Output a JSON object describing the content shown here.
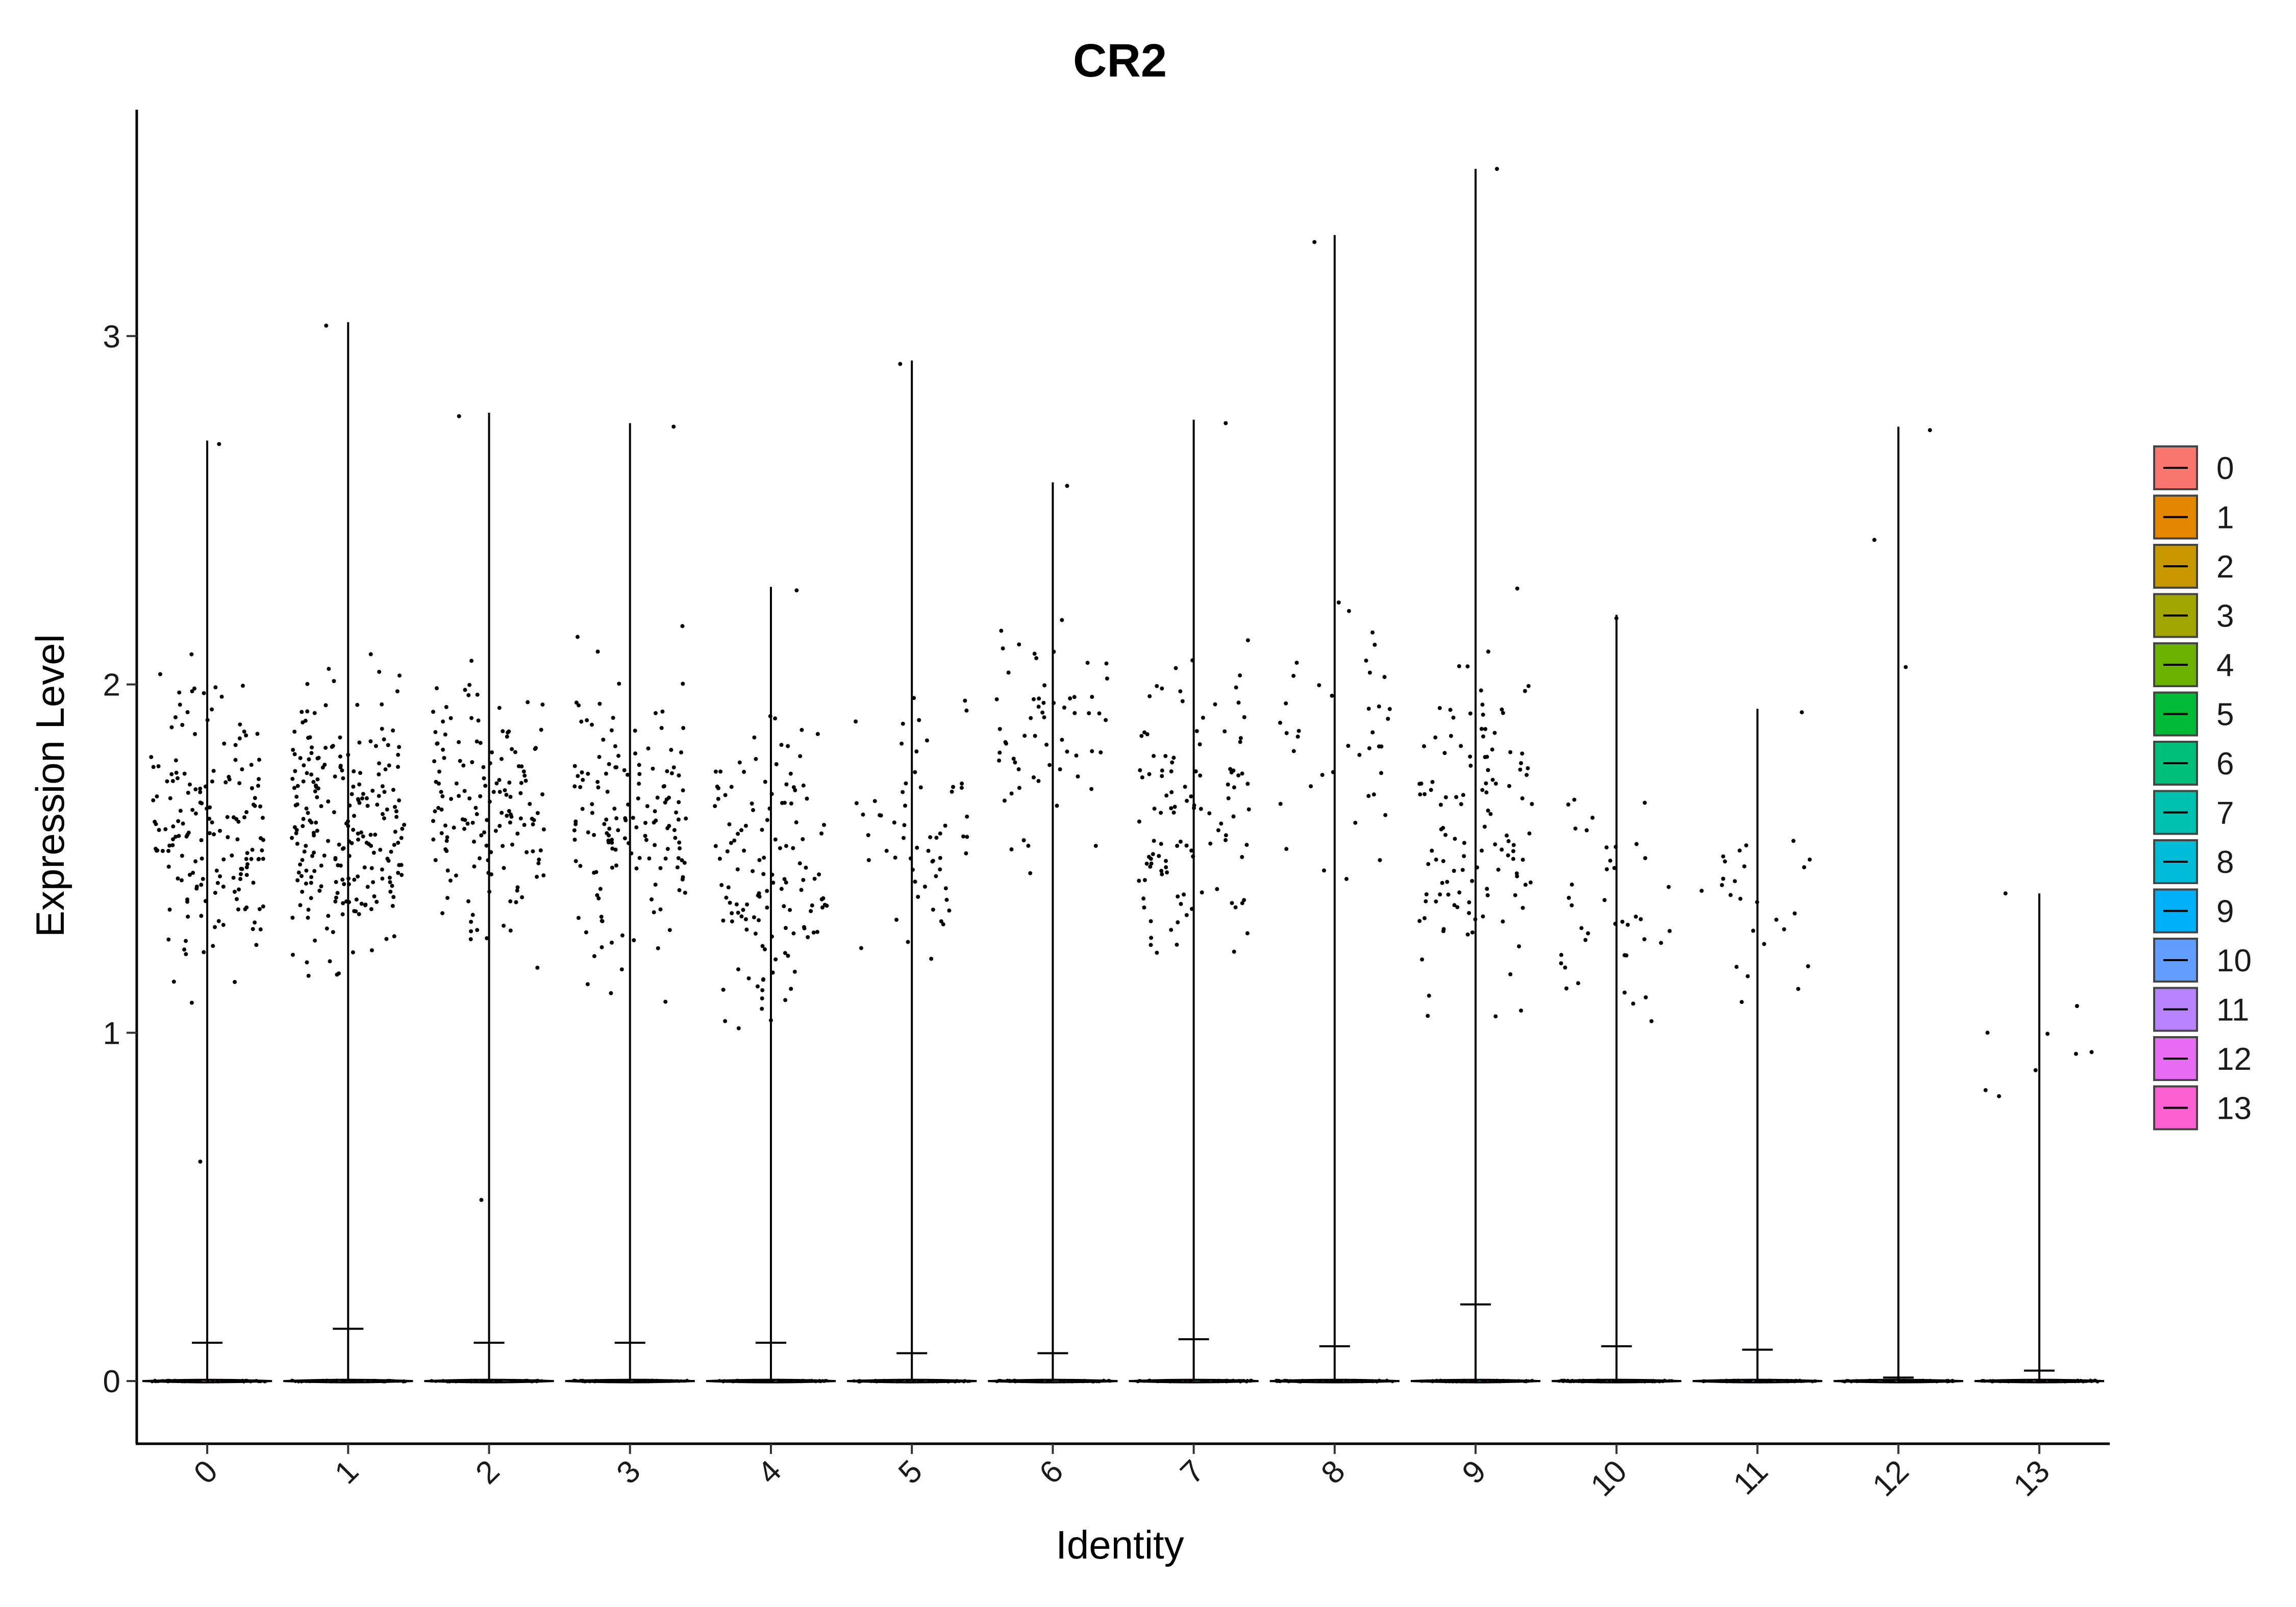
{
  "chart_data": {
    "type": "violin",
    "title": "CR2",
    "xlabel": "Identity",
    "ylabel": "Expression Level",
    "categories": [
      "0",
      "1",
      "2",
      "3",
      "4",
      "5",
      "6",
      "7",
      "8",
      "9",
      "10",
      "11",
      "12",
      "13"
    ],
    "ylim": [
      -0.18,
      3.65
    ],
    "yticks": [
      0,
      1,
      2,
      3
    ],
    "max_values": [
      2.7,
      3.04,
      2.78,
      2.75,
      2.28,
      2.93,
      2.58,
      2.76,
      3.29,
      3.48,
      2.2,
      1.93,
      2.74,
      1.4
    ],
    "medians": [
      0,
      0,
      0,
      0,
      0,
      0,
      0,
      0,
      0,
      0,
      0,
      0,
      0,
      0
    ],
    "cap_markers": [
      0.11,
      0.15,
      0.11,
      0.11,
      0.11,
      0.08,
      0.08,
      0.12,
      0.1,
      0.22,
      0.1,
      0.09,
      0.01,
      0.03
    ],
    "points_above_zero": [
      {
        "group": "0",
        "n": 170,
        "range": [
          0.9,
          2.3
        ],
        "max": 2.69,
        "extra": [
          0.63
        ]
      },
      {
        "group": "1",
        "n": 230,
        "range": [
          0.9,
          2.3
        ],
        "max": 3.03
      },
      {
        "group": "2",
        "n": 150,
        "range": [
          1.0,
          2.3
        ],
        "max": 2.77,
        "extra": [
          0.52
        ]
      },
      {
        "group": "3",
        "n": 150,
        "range": [
          0.9,
          2.3
        ],
        "max": 2.74
      },
      {
        "group": "4",
        "n": 130,
        "range": [
          0.73,
          2.25
        ],
        "max": 2.27
      },
      {
        "group": "5",
        "n": 60,
        "range": [
          0.8,
          2.3
        ],
        "max": 2.92
      },
      {
        "group": "6",
        "n": 60,
        "range": [
          1.2,
          2.5
        ],
        "max": 2.57
      },
      {
        "group": "7",
        "n": 110,
        "range": [
          0.87,
          2.4
        ],
        "max": 2.75
      },
      {
        "group": "8",
        "n": 40,
        "range": [
          0.98,
          2.7
        ],
        "max": 3.27
      },
      {
        "group": "9",
        "n": 120,
        "range": [
          0.67,
          2.5
        ],
        "max": 3.48
      },
      {
        "group": "10",
        "n": 40,
        "range": [
          0.76,
          2.0
        ],
        "max": 2.19
      },
      {
        "group": "11",
        "n": 25,
        "range": [
          0.72,
          1.92
        ],
        "max": 1.92
      },
      {
        "group": "12",
        "n": 2,
        "range": [
          1.72,
          2.73
        ],
        "max": 2.73
      },
      {
        "group": "13",
        "n": 8,
        "range": [
          0.62,
          1.37
        ],
        "max": 1.4
      }
    ],
    "colors": [
      "#F8766D",
      "#E58700",
      "#C99800",
      "#A3A500",
      "#6BB100",
      "#00BA38",
      "#00BF7D",
      "#00C0AF",
      "#00BCD8",
      "#00B0F6",
      "#619CFF",
      "#B983FF",
      "#E76BF3",
      "#FD61D1"
    ],
    "legend_position": "right",
    "grid": false
  }
}
